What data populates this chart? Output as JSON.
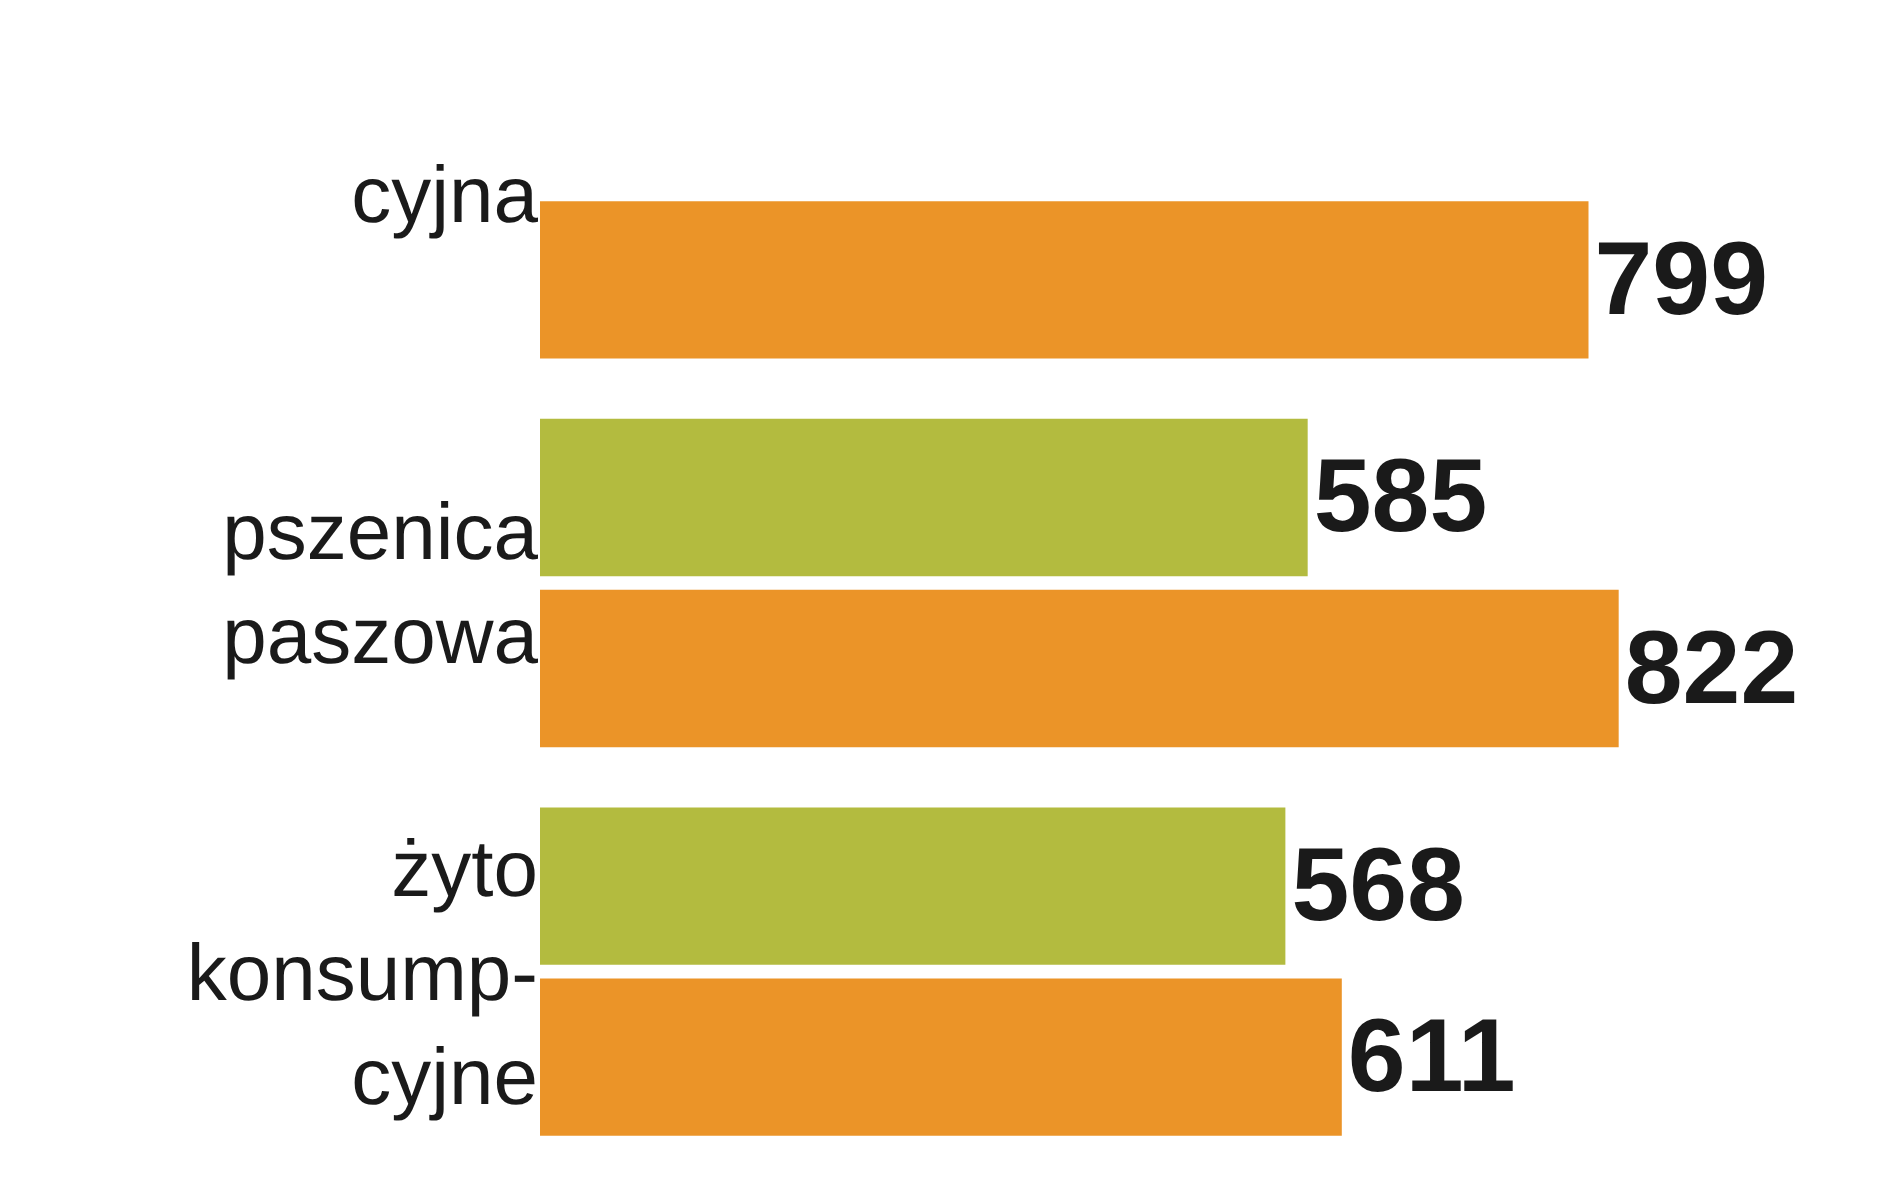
{
  "chart_data": {
    "type": "bar",
    "orientation": "horizontal",
    "categories": [
      "cyjna",
      "pszenica\npaszowa",
      "żyto\nkonsump-\ncyjne"
    ],
    "series": [
      {
        "color": "#b3bb3f",
        "values": [
          null,
          585,
          568
        ]
      },
      {
        "color": "#eb9428",
        "values": [
          799,
          822,
          611
        ]
      }
    ],
    "data_labels": true
  }
}
